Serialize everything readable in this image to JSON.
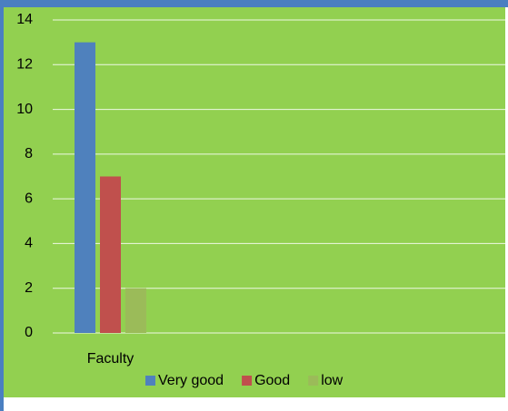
{
  "chart_data": {
    "type": "bar",
    "categories": [
      "Faculty"
    ],
    "series": [
      {
        "name": "Very good",
        "color": "#4f81bd",
        "values": [
          13
        ]
      },
      {
        "name": "Good",
        "color": "#c0504d",
        "values": [
          7
        ]
      },
      {
        "name": "low",
        "color": "#9bbb59",
        "values": [
          2
        ]
      }
    ],
    "ylim": [
      0,
      14
    ],
    "yticks": [
      0,
      2,
      4,
      6,
      8,
      10,
      12,
      14
    ],
    "grid": true,
    "legend": "bottom",
    "background": "#92d050"
  }
}
